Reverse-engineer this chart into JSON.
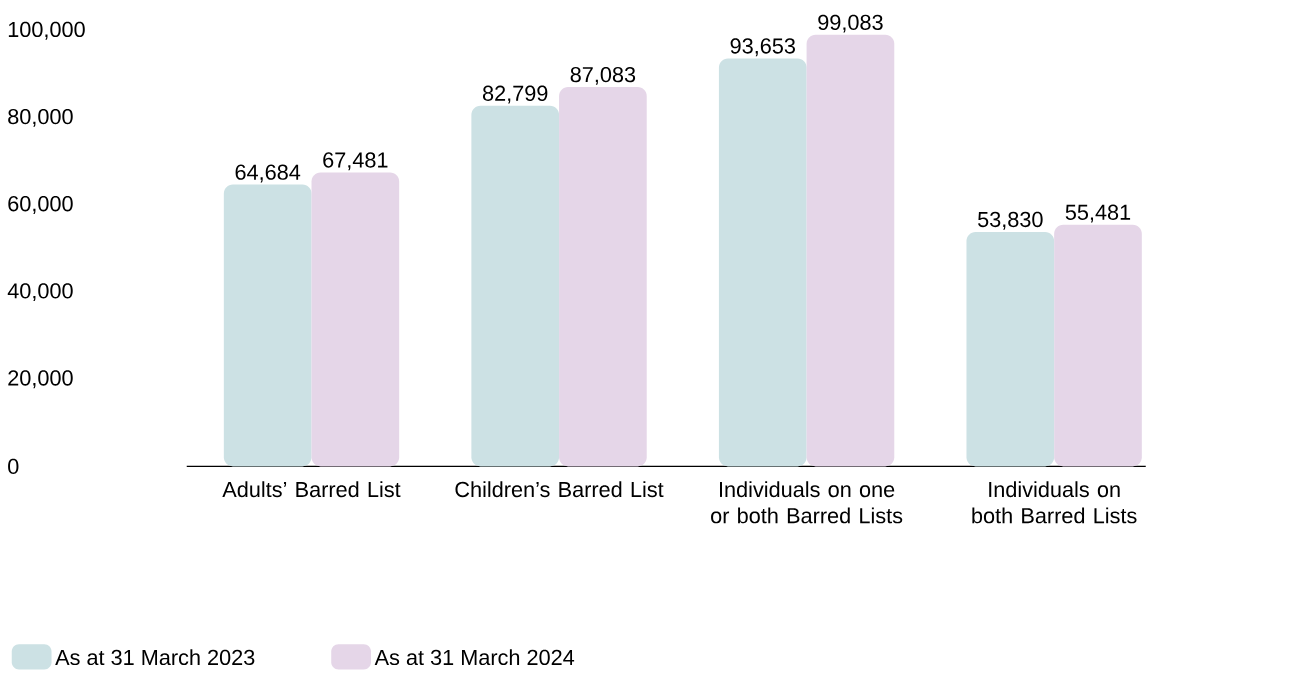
{
  "chart_data": {
    "type": "bar",
    "categories": [
      "Adults’ Barred List",
      "Children’s Barred List",
      "Individuals on one or both Barred Lists",
      "Individuals on both Barred Lists"
    ],
    "series": [
      {
        "name": "As at 31 March 2023",
        "color": "#cce1e4",
        "values": [
          64684,
          82799,
          93653,
          53830
        ],
        "value_labels": [
          "64,684",
          "82,799",
          "93,653",
          "53,830"
        ]
      },
      {
        "name": "As at 31 March 2024",
        "color": "#e5d6e8",
        "values": [
          67481,
          87083,
          99083,
          55481
        ],
        "value_labels": [
          "67,481",
          "87,083",
          "99,083",
          "55,481"
        ]
      }
    ],
    "ylim": [
      0,
      100000
    ],
    "yticks": [
      0,
      {
        "value": 20000,
        "label": "20,000"
      },
      {
        "value": 40000,
        "label": "40,000"
      },
      {
        "value": 60000,
        "label": "60,000"
      },
      {
        "value": 80000,
        "label": "80,000"
      },
      {
        "value": 100000,
        "label": "100,000"
      }
    ],
    "grid": false,
    "legend": "bottom left"
  }
}
